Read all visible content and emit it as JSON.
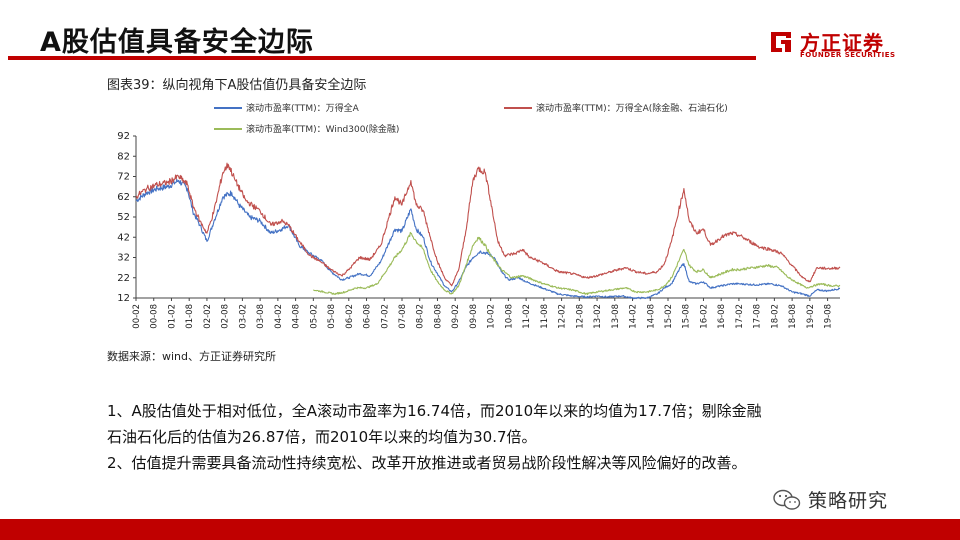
{
  "slide": {
    "title": "A股估值具备安全边际",
    "figure_title": "图表39：纵向视角下A股估值仍具备安全边际",
    "source": "数据来源：wind、方正证券研究所",
    "paragraphs": [
      "1、A股估值处于相对低位，全A滚动市盈率为16.74倍，而2010年以来的均值为17.7倍；剔除金融",
      "石油石化后的估值为26.87倍，而2010年以来的均值为30.7倍。",
      "2、估值提升需要具备流动性持续宽松、改革开放推进或者贸易战阶段性解决等风险偏好的改善。"
    ]
  },
  "logo": {
    "name_cn": "方正证券",
    "name_en": "FOUNDER SECURITIES",
    "color": "#c00000"
  },
  "watermark": {
    "text": "策略研究",
    "icon": "wechat-icon"
  },
  "chart_data": {
    "type": "line",
    "title": "",
    "xlabel": "",
    "ylabel": "",
    "ylim": [
      12,
      92
    ],
    "yticks": [
      12,
      22,
      32,
      42,
      52,
      62,
      72,
      82,
      92
    ],
    "xticks": [
      "00-02",
      "00-08",
      "01-02",
      "01-08",
      "02-02",
      "02-08",
      "03-02",
      "03-08",
      "04-02",
      "04-08",
      "05-02",
      "05-08",
      "06-02",
      "06-08",
      "07-02",
      "07-08",
      "08-02",
      "08-08",
      "09-02",
      "09-08",
      "10-02",
      "10-08",
      "11-02",
      "11-08",
      "12-02",
      "12-08",
      "13-02",
      "13-08",
      "14-02",
      "14-08",
      "15-02",
      "15-08",
      "16-02",
      "16-08",
      "17-02",
      "17-08",
      "18-02",
      "18-08",
      "19-02",
      "19-08"
    ],
    "x_range": [
      2000.0,
      2019.85
    ],
    "grid": false,
    "legend_position": "top",
    "series": [
      {
        "name": "滚动市盈率(TTM)：万得全A",
        "color": "#4472c4",
        "points": [
          [
            2000.0,
            60
          ],
          [
            2000.3,
            64
          ],
          [
            2000.6,
            66
          ],
          [
            2000.9,
            67
          ],
          [
            2001.2,
            70
          ],
          [
            2001.45,
            66
          ],
          [
            2001.6,
            55
          ],
          [
            2001.8,
            48
          ],
          [
            2002.0,
            40
          ],
          [
            2002.2,
            50
          ],
          [
            2002.45,
            62
          ],
          [
            2002.7,
            64
          ],
          [
            2002.9,
            58
          ],
          [
            2003.2,
            52
          ],
          [
            2003.5,
            50
          ],
          [
            2003.8,
            44
          ],
          [
            2004.1,
            46
          ],
          [
            2004.3,
            48
          ],
          [
            2004.6,
            38
          ],
          [
            2004.9,
            34
          ],
          [
            2005.2,
            31
          ],
          [
            2005.5,
            25
          ],
          [
            2005.8,
            21
          ],
          [
            2006.0,
            22
          ],
          [
            2006.3,
            24
          ],
          [
            2006.6,
            23
          ],
          [
            2006.9,
            30
          ],
          [
            2007.1,
            38
          ],
          [
            2007.3,
            46
          ],
          [
            2007.5,
            45
          ],
          [
            2007.75,
            56
          ],
          [
            2007.9,
            46
          ],
          [
            2008.1,
            42
          ],
          [
            2008.3,
            30
          ],
          [
            2008.5,
            24
          ],
          [
            2008.7,
            18
          ],
          [
            2008.9,
            15
          ],
          [
            2009.1,
            20
          ],
          [
            2009.3,
            27
          ],
          [
            2009.5,
            32
          ],
          [
            2009.7,
            35
          ],
          [
            2009.9,
            34
          ],
          [
            2010.1,
            32
          ],
          [
            2010.3,
            25
          ],
          [
            2010.5,
            21
          ],
          [
            2010.8,
            22
          ],
          [
            2011.0,
            20
          ],
          [
            2011.3,
            18
          ],
          [
            2011.6,
            16
          ],
          [
            2011.9,
            14
          ],
          [
            2012.3,
            13
          ],
          [
            2012.7,
            12.5
          ],
          [
            2013.0,
            13
          ],
          [
            2013.3,
            12.5
          ],
          [
            2013.7,
            13
          ],
          [
            2014.0,
            12
          ],
          [
            2014.4,
            12
          ],
          [
            2014.7,
            14
          ],
          [
            2014.9,
            17
          ],
          [
            2015.1,
            19
          ],
          [
            2015.35,
            27
          ],
          [
            2015.45,
            29
          ],
          [
            2015.6,
            20
          ],
          [
            2015.8,
            19
          ],
          [
            2016.0,
            20
          ],
          [
            2016.2,
            17
          ],
          [
            2016.5,
            18
          ],
          [
            2016.8,
            19
          ],
          [
            2017.0,
            19
          ],
          [
            2017.5,
            18.5
          ],
          [
            2017.9,
            19
          ],
          [
            2018.2,
            18
          ],
          [
            2018.5,
            15
          ],
          [
            2018.8,
            14
          ],
          [
            2019.0,
            13
          ],
          [
            2019.2,
            16
          ],
          [
            2019.5,
            15.5
          ],
          [
            2019.85,
            16.7
          ]
        ]
      },
      {
        "name": "滚动市盈率(TTM)：万得全A(除金融、石油石化)",
        "color": "#c0504d",
        "points": [
          [
            2000.0,
            62
          ],
          [
            2000.3,
            66
          ],
          [
            2000.6,
            68
          ],
          [
            2000.9,
            69
          ],
          [
            2001.2,
            72
          ],
          [
            2001.45,
            68
          ],
          [
            2001.6,
            58
          ],
          [
            2001.8,
            50
          ],
          [
            2002.0,
            44
          ],
          [
            2002.2,
            55
          ],
          [
            2002.45,
            74
          ],
          [
            2002.6,
            78
          ],
          [
            2002.8,
            70
          ],
          [
            2003.1,
            60
          ],
          [
            2003.5,
            55
          ],
          [
            2003.8,
            48
          ],
          [
            2004.1,
            50
          ],
          [
            2004.3,
            48
          ],
          [
            2004.6,
            40
          ],
          [
            2004.9,
            33
          ],
          [
            2005.2,
            30
          ],
          [
            2005.5,
            26
          ],
          [
            2005.8,
            23
          ],
          [
            2006.0,
            26
          ],
          [
            2006.3,
            32
          ],
          [
            2006.6,
            31
          ],
          [
            2006.9,
            38
          ],
          [
            2007.1,
            50
          ],
          [
            2007.3,
            62
          ],
          [
            2007.5,
            58
          ],
          [
            2007.75,
            70
          ],
          [
            2007.9,
            58
          ],
          [
            2008.1,
            55
          ],
          [
            2008.3,
            42
          ],
          [
            2008.5,
            30
          ],
          [
            2008.7,
            22
          ],
          [
            2008.9,
            18
          ],
          [
            2009.1,
            26
          ],
          [
            2009.3,
            45
          ],
          [
            2009.5,
            70
          ],
          [
            2009.65,
            76
          ],
          [
            2009.85,
            74
          ],
          [
            2010.0,
            60
          ],
          [
            2010.2,
            40
          ],
          [
            2010.4,
            33
          ],
          [
            2010.7,
            34
          ],
          [
            2010.9,
            36
          ],
          [
            2011.1,
            32
          ],
          [
            2011.4,
            30
          ],
          [
            2011.7,
            27
          ],
          [
            2011.9,
            25
          ],
          [
            2012.3,
            24
          ],
          [
            2012.7,
            22
          ],
          [
            2013.0,
            23
          ],
          [
            2013.4,
            25
          ],
          [
            2013.8,
            27
          ],
          [
            2014.1,
            25
          ],
          [
            2014.4,
            24
          ],
          [
            2014.7,
            25
          ],
          [
            2014.9,
            29
          ],
          [
            2015.1,
            40
          ],
          [
            2015.3,
            55
          ],
          [
            2015.45,
            66
          ],
          [
            2015.6,
            50
          ],
          [
            2015.8,
            44
          ],
          [
            2016.0,
            46
          ],
          [
            2016.2,
            38
          ],
          [
            2016.5,
            42
          ],
          [
            2016.8,
            44
          ],
          [
            2017.0,
            43
          ],
          [
            2017.3,
            40
          ],
          [
            2017.6,
            37
          ],
          [
            2017.9,
            36
          ],
          [
            2018.2,
            34
          ],
          [
            2018.5,
            28
          ],
          [
            2018.8,
            22
          ],
          [
            2019.0,
            20
          ],
          [
            2019.2,
            27
          ],
          [
            2019.5,
            26.5
          ],
          [
            2019.85,
            26.9
          ]
        ]
      },
      {
        "name": "滚动市盈率(TTM)：Wind300(除金融)",
        "color": "#9bbb59",
        "points": [
          [
            2005.0,
            16
          ],
          [
            2005.3,
            15
          ],
          [
            2005.6,
            14
          ],
          [
            2005.9,
            15
          ],
          [
            2006.2,
            17
          ],
          [
            2006.5,
            17
          ],
          [
            2006.8,
            19
          ],
          [
            2007.0,
            24
          ],
          [
            2007.3,
            32
          ],
          [
            2007.5,
            36
          ],
          [
            2007.75,
            44
          ],
          [
            2007.9,
            40
          ],
          [
            2008.1,
            36
          ],
          [
            2008.3,
            26
          ],
          [
            2008.5,
            20
          ],
          [
            2008.7,
            16
          ],
          [
            2008.9,
            14
          ],
          [
            2009.1,
            18
          ],
          [
            2009.3,
            28
          ],
          [
            2009.5,
            38
          ],
          [
            2009.65,
            42
          ],
          [
            2009.85,
            38
          ],
          [
            2010.0,
            33
          ],
          [
            2010.3,
            26
          ],
          [
            2010.6,
            22
          ],
          [
            2010.9,
            23
          ],
          [
            2011.2,
            21
          ],
          [
            2011.5,
            19
          ],
          [
            2011.9,
            17
          ],
          [
            2012.3,
            16
          ],
          [
            2012.7,
            14
          ],
          [
            2013.0,
            15
          ],
          [
            2013.4,
            16
          ],
          [
            2013.8,
            17
          ],
          [
            2014.1,
            15
          ],
          [
            2014.4,
            15
          ],
          [
            2014.7,
            16
          ],
          [
            2014.9,
            18
          ],
          [
            2015.1,
            22
          ],
          [
            2015.3,
            30
          ],
          [
            2015.45,
            36
          ],
          [
            2015.6,
            28
          ],
          [
            2015.8,
            25
          ],
          [
            2016.0,
            26
          ],
          [
            2016.2,
            22
          ],
          [
            2016.5,
            24
          ],
          [
            2016.8,
            26
          ],
          [
            2017.0,
            26
          ],
          [
            2017.4,
            27
          ],
          [
            2017.8,
            28
          ],
          [
            2018.1,
            27
          ],
          [
            2018.4,
            22
          ],
          [
            2018.7,
            19
          ],
          [
            2018.9,
            17
          ],
          [
            2019.1,
            18
          ],
          [
            2019.3,
            19
          ],
          [
            2019.6,
            18
          ],
          [
            2019.85,
            18
          ]
        ]
      }
    ]
  }
}
